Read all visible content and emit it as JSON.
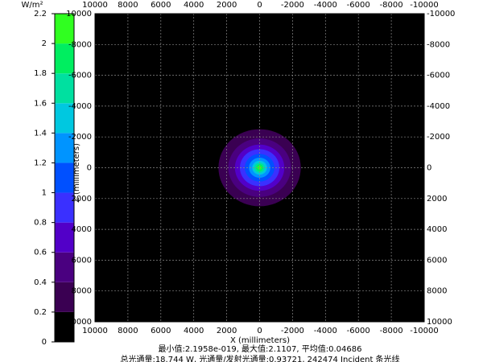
{
  "chart_data": {
    "type": "irradiance",
    "unit": "W/m²",
    "colorbar": {
      "ylim": [
        0,
        2.2
      ],
      "yticks": [
        0,
        0.2,
        0.4,
        0.6,
        0.8,
        1,
        1.2,
        1.4,
        1.6,
        1.8,
        2,
        2.2
      ],
      "colors": [
        "#000000",
        "#3a0052",
        "#4a0080",
        "#5200c8",
        "#3a30ff",
        "#0050ff",
        "#0094ff",
        "#00c8e0",
        "#00e0a0",
        "#00ee60",
        "#30ff20"
      ]
    },
    "xlabel": "X (millimeters)",
    "ylabel": "Z (millimeters)",
    "xlim": [
      10000,
      -10000
    ],
    "xticks": [
      10000,
      8000,
      6000,
      4000,
      2000,
      0,
      -2000,
      -4000,
      -6000,
      -8000,
      -10000
    ],
    "ylim": [
      -10000,
      10000
    ],
    "yticks": [
      -10000,
      -8000,
      -6000,
      -4000,
      -2000,
      0,
      2000,
      4000,
      6000,
      8000,
      10000
    ],
    "grid": true,
    "contours": [
      {
        "radius": 2500,
        "level": 0.2
      },
      {
        "radius": 1900,
        "level": 0.4
      },
      {
        "radius": 1500,
        "level": 0.6
      },
      {
        "radius": 1200,
        "level": 0.8
      },
      {
        "radius": 900,
        "level": 1
      },
      {
        "radius": 650,
        "level": 1.2
      },
      {
        "radius": 450,
        "level": 1.4
      },
      {
        "radius": 320,
        "level": 1.6
      },
      {
        "radius": 220,
        "level": 1.8
      },
      {
        "radius": 120,
        "level": 2
      }
    ],
    "footer": [
      "最小值:2.1958e-019, 最大值:2.1107, 平均值:0.04686",
      "总光通量:18.744 W, 光通量/发射光通量:0.93721, 242474 Incident 条光线"
    ]
  }
}
